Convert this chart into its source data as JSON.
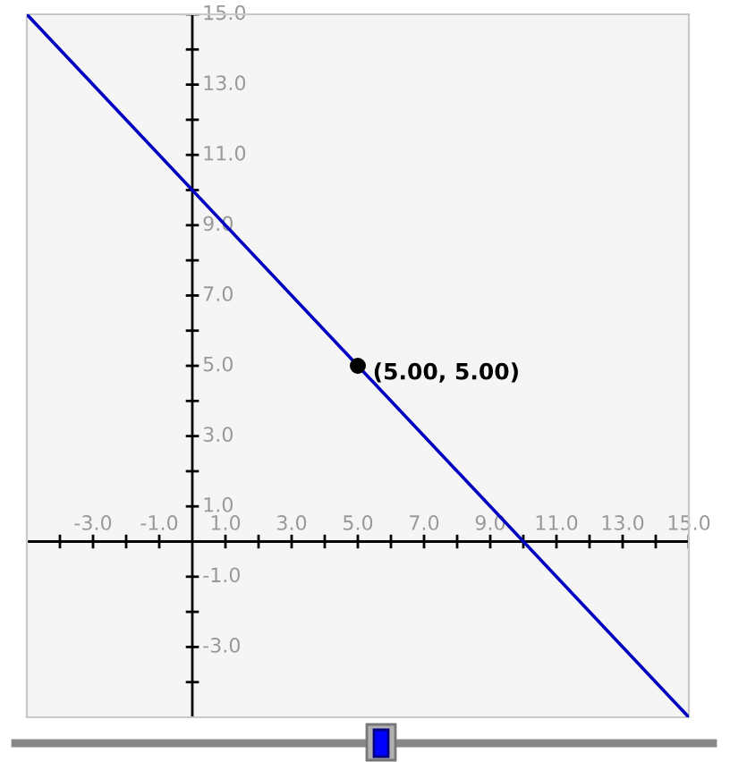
{
  "chart_data": {
    "type": "line",
    "series": [
      {
        "color": "#0000c0",
        "x": [
          -5,
          15
        ],
        "values": [
          15,
          -5
        ]
      },
      {
        "type": "scatter",
        "color": "#000000",
        "x": [
          5
        ],
        "values": [
          5
        ],
        "marker": "circle"
      }
    ],
    "annotations": [
      {
        "text": "(5.00, 5.00)",
        "x": 5,
        "y": 5
      }
    ],
    "xlim": [
      -5,
      15
    ],
    "ylim": [
      -5,
      15
    ],
    "xticks": [
      {
        "value": -4,
        "label": null
      },
      {
        "value": -3,
        "label": "-3.0"
      },
      {
        "value": -2,
        "label": null
      },
      {
        "value": -1,
        "label": "-1.0"
      },
      {
        "value": 1,
        "label": "1.0"
      },
      {
        "value": 2,
        "label": null
      },
      {
        "value": 3,
        "label": "3.0"
      },
      {
        "value": 4,
        "label": null
      },
      {
        "value": 5,
        "label": "5.0"
      },
      {
        "value": 6,
        "label": null
      },
      {
        "value": 7,
        "label": "7.0"
      },
      {
        "value": 8,
        "label": null
      },
      {
        "value": 9,
        "label": "9.0"
      },
      {
        "value": 10,
        "label": null
      },
      {
        "value": 11,
        "label": "11.0"
      },
      {
        "value": 12,
        "label": null
      },
      {
        "value": 13,
        "label": "13.0"
      },
      {
        "value": 14,
        "label": null
      },
      {
        "value": 15,
        "label": "15.0"
      }
    ],
    "yticks": [
      {
        "value": -4,
        "label": null
      },
      {
        "value": -3,
        "label": "-3.0"
      },
      {
        "value": -2,
        "label": null
      },
      {
        "value": -1,
        "label": "-1.0"
      },
      {
        "value": 1,
        "label": "1.0"
      },
      {
        "value": 2,
        "label": null
      },
      {
        "value": 3,
        "label": "3.0"
      },
      {
        "value": 4,
        "label": null
      },
      {
        "value": 5,
        "label": "5.0"
      },
      {
        "value": 6,
        "label": null
      },
      {
        "value": 7,
        "label": "7.0"
      },
      {
        "value": 8,
        "label": null
      },
      {
        "value": 9,
        "label": "9.0"
      },
      {
        "value": 10,
        "label": null
      },
      {
        "value": 11,
        "label": "11.0"
      },
      {
        "value": 12,
        "label": null
      },
      {
        "value": 13,
        "label": "13.0"
      },
      {
        "value": 14,
        "label": null
      },
      {
        "value": 15,
        "label": "15.0"
      }
    ],
    "grid": false,
    "legend": false,
    "marker": "none",
    "line_style": "solid"
  }
}
